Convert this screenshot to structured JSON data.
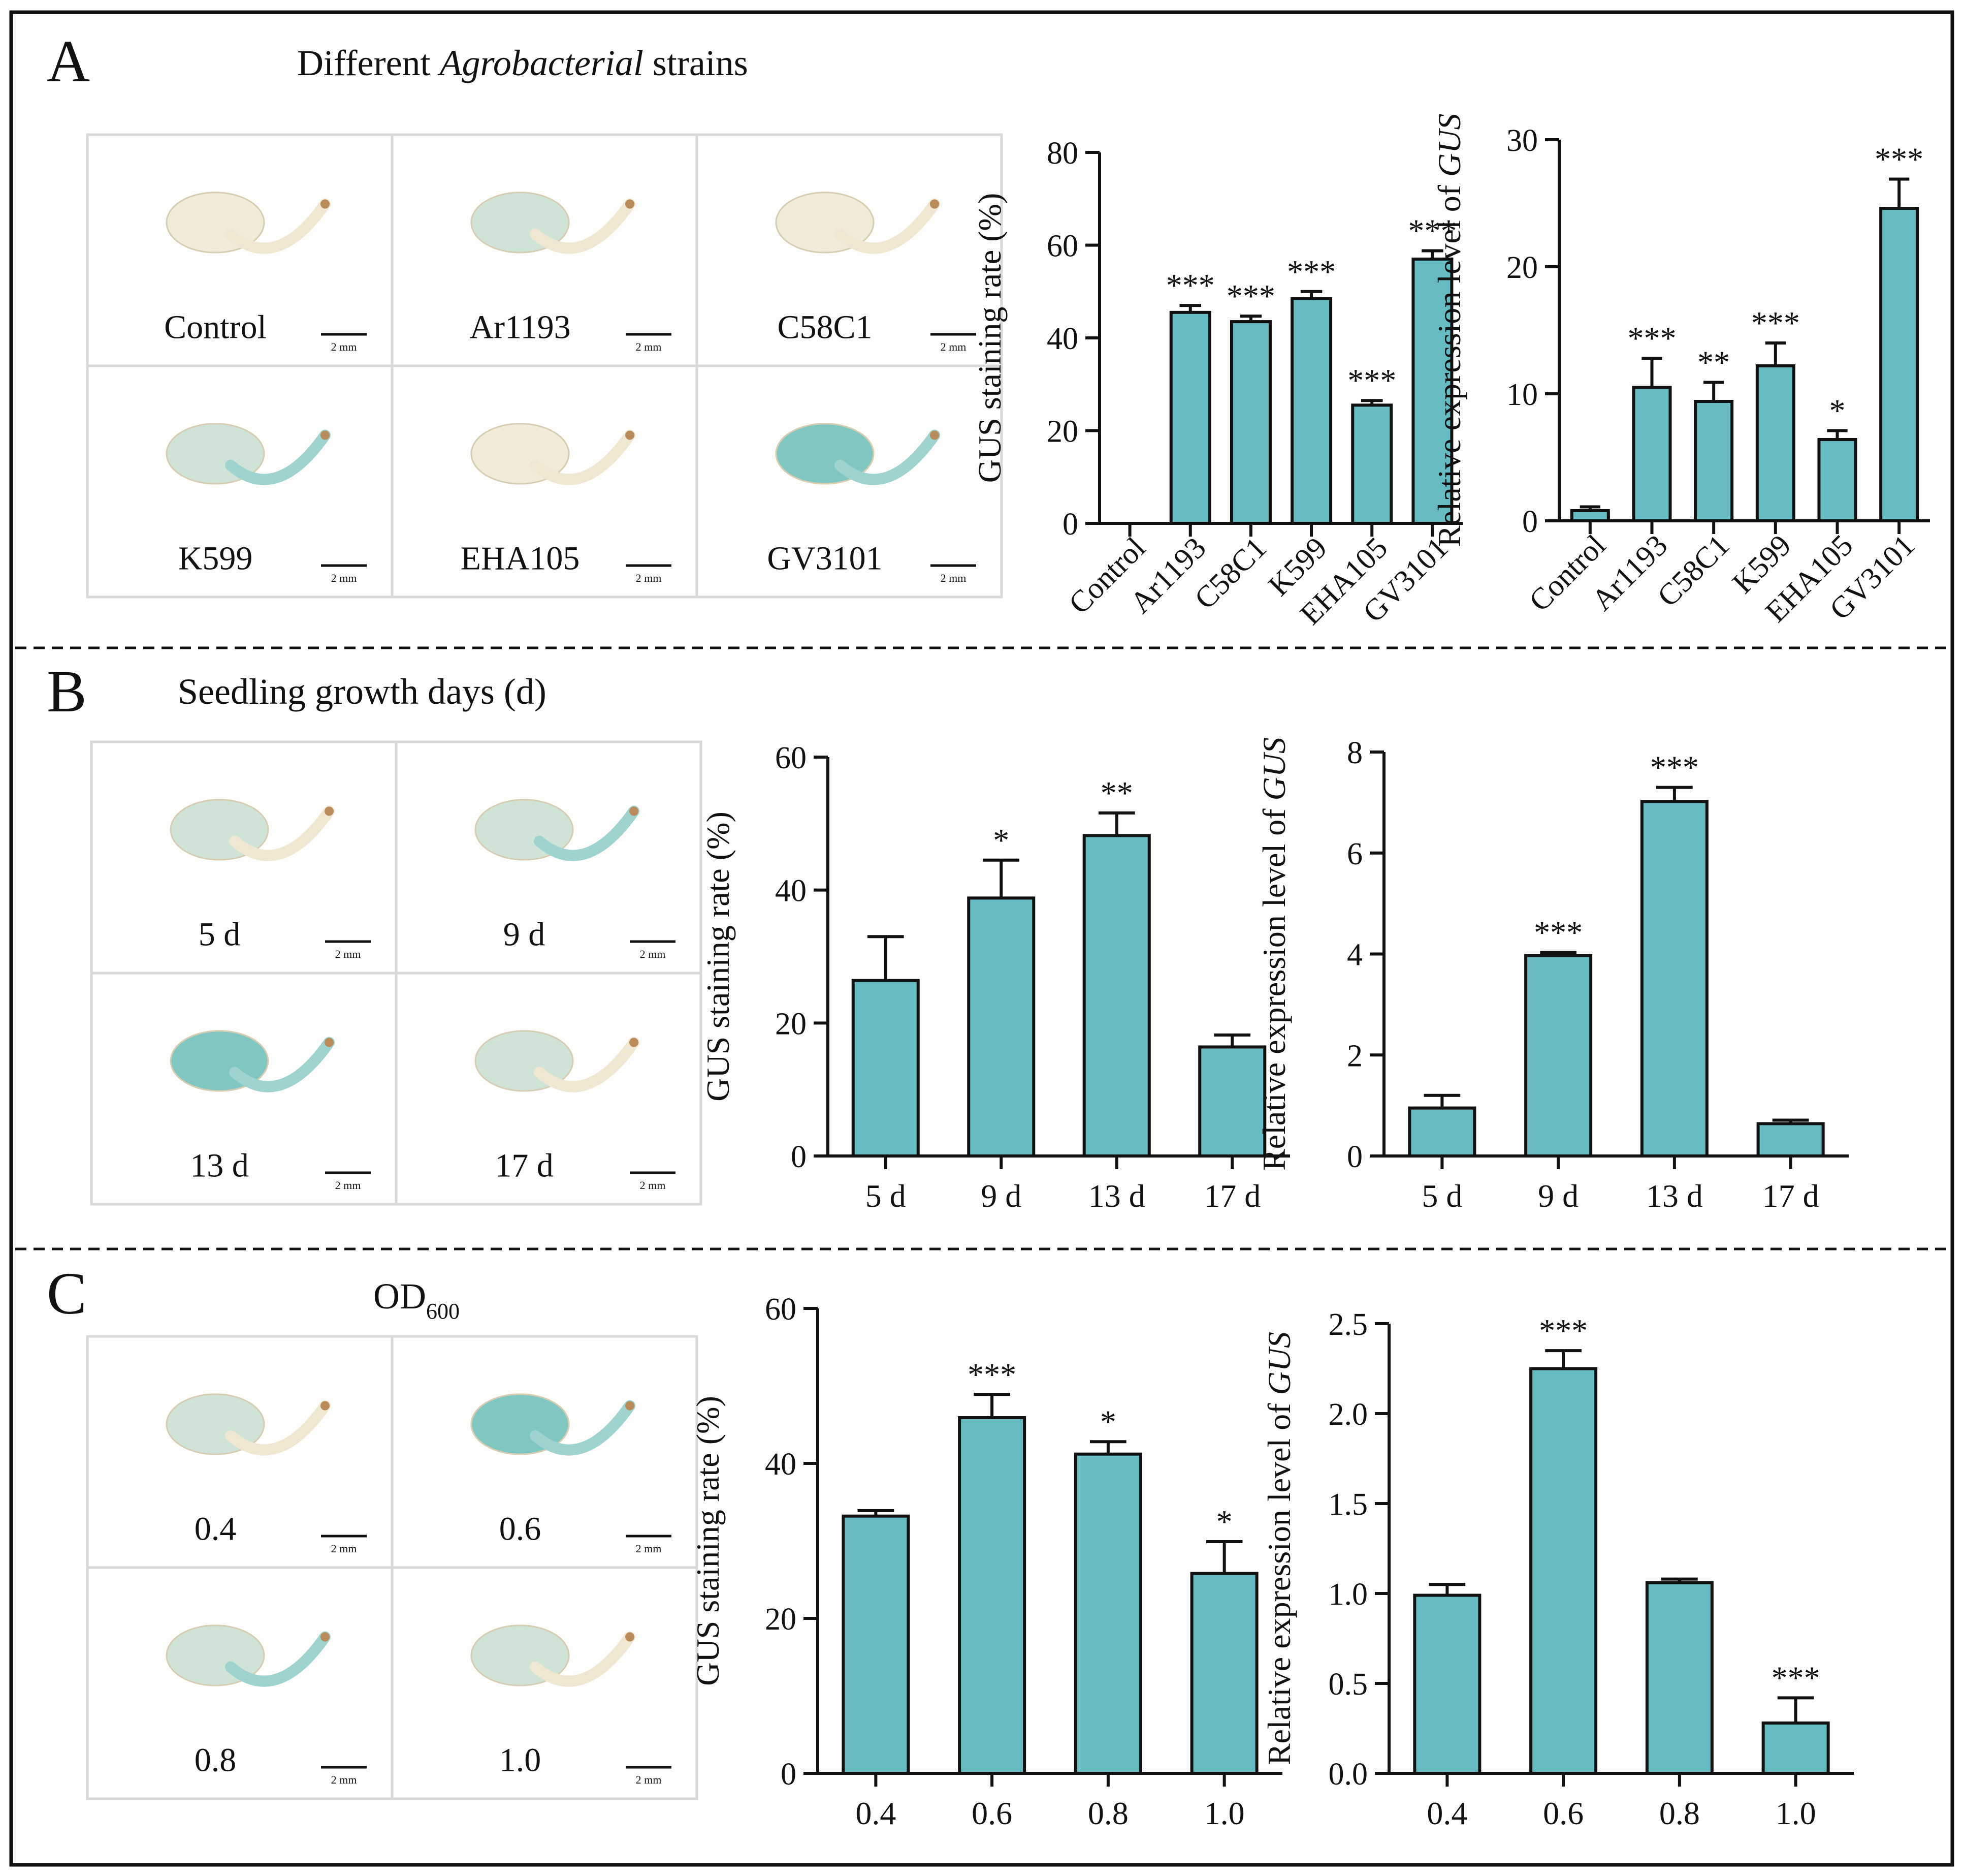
{
  "panels": {
    "A": {
      "letter": "A",
      "title_prefix": "Different ",
      "title_italic": "Agrobacterial",
      "title_suffix": " strains"
    },
    "B": {
      "letter": "B",
      "title": "Seedling growth days (d)"
    },
    "C": {
      "letter": "C",
      "title_main": "OD",
      "title_sub": "600"
    }
  },
  "photos": {
    "A": [
      {
        "label": "Control",
        "scale": "2 mm",
        "blue": 0.0
      },
      {
        "label": "Ar1193",
        "scale": "2 mm",
        "blue": 0.3
      },
      {
        "label": "C58C1",
        "scale": "2 mm",
        "blue": 0.1
      },
      {
        "label": "K599",
        "scale": "2 mm",
        "blue": 0.5
      },
      {
        "label": "EHA105",
        "scale": "2 mm",
        "blue": 0.05
      },
      {
        "label": "GV3101",
        "scale": "2 mm",
        "blue": 0.9
      }
    ],
    "B": [
      {
        "label": "5 d",
        "scale": "2 mm",
        "blue": 0.3
      },
      {
        "label": "9 d",
        "scale": "2 mm",
        "blue": 0.6
      },
      {
        "label": "13 d",
        "scale": "2 mm",
        "blue": 0.7
      },
      {
        "label": "17 d",
        "scale": "2 mm",
        "blue": 0.3
      }
    ],
    "C": [
      {
        "label": "0.4",
        "scale": "2 mm",
        "blue": 0.3
      },
      {
        "label": "0.6",
        "scale": "2 mm",
        "blue": 0.8
      },
      {
        "label": "0.8",
        "scale": "2 mm",
        "blue": 0.5
      },
      {
        "label": "1.0",
        "scale": "2 mm",
        "blue": 0.3
      }
    ]
  },
  "colors": {
    "bar": "#67BCC3",
    "ink": "#111111"
  },
  "chart_data": [
    {
      "id": "A1",
      "type": "bar",
      "ylabel": "GUS staining rate (%)",
      "ylabel_italic": "",
      "categories": [
        "Control",
        "Ar1193",
        "C58C1",
        "K599",
        "EHA105",
        "GV3101"
      ],
      "values": [
        0,
        45.5,
        43.5,
        48.5,
        25.5,
        57.0
      ],
      "errors": [
        0,
        1.5,
        1.2,
        1.5,
        1.0,
        1.8
      ],
      "significance": [
        "",
        "***",
        "***",
        "***",
        "***",
        "***"
      ],
      "ylim": [
        0,
        80
      ],
      "yticks": [
        "0",
        "20",
        "40",
        "60",
        "80"
      ],
      "rotate_x": true
    },
    {
      "id": "A2",
      "type": "bar",
      "ylabel": "Relative expression level of ",
      "ylabel_italic": "GUS",
      "categories": [
        "Control",
        "Ar1193",
        "C58C1",
        "K599",
        "EHA105",
        "GV3101"
      ],
      "values": [
        0.8,
        10.5,
        9.4,
        12.2,
        6.4,
        24.6
      ],
      "errors": [
        0.3,
        2.3,
        1.5,
        1.8,
        0.7,
        2.3
      ],
      "significance": [
        "",
        "***",
        "**",
        "***",
        "*",
        "***"
      ],
      "ylim": [
        0,
        30
      ],
      "yticks": [
        "0",
        "10",
        "20",
        "30"
      ],
      "rotate_x": true
    },
    {
      "id": "B1",
      "type": "bar",
      "ylabel": "GUS staining rate (%)",
      "ylabel_italic": "",
      "categories": [
        "5 d",
        "9 d",
        "13 d",
        "17 d"
      ],
      "values": [
        26.4,
        38.8,
        48.2,
        16.4
      ],
      "errors": [
        6.6,
        5.7,
        3.4,
        1.8
      ],
      "significance": [
        "",
        "*",
        "**",
        ""
      ],
      "ylim": [
        0,
        60
      ],
      "yticks": [
        "0",
        "20",
        "40",
        "60"
      ],
      "rotate_x": false
    },
    {
      "id": "B2",
      "type": "bar",
      "ylabel": "Relative expression level of ",
      "ylabel_italic": "GUS",
      "categories": [
        "5 d",
        "9 d",
        "13 d",
        "17 d"
      ],
      "values": [
        0.95,
        3.97,
        7.02,
        0.64
      ],
      "errors": [
        0.25,
        0.06,
        0.28,
        0.07
      ],
      "significance": [
        "",
        "***",
        "***",
        ""
      ],
      "ylim": [
        0,
        8
      ],
      "yticks": [
        "0",
        "2",
        "4",
        "6",
        "8"
      ],
      "rotate_x": false
    },
    {
      "id": "C1",
      "type": "bar",
      "ylabel": "GUS staining rate (%)",
      "ylabel_italic": "",
      "categories": [
        "0.4",
        "0.6",
        "0.8",
        "1.0"
      ],
      "values": [
        33.2,
        45.9,
        41.2,
        25.8
      ],
      "errors": [
        0.7,
        3.0,
        1.6,
        4.1
      ],
      "significance": [
        "",
        "***",
        "*",
        "*"
      ],
      "ylim": [
        0,
        60
      ],
      "yticks": [
        "0",
        "20",
        "40",
        "60"
      ],
      "rotate_x": false
    },
    {
      "id": "C2",
      "type": "bar",
      "ylabel": "Relative expression level of ",
      "ylabel_italic": "GUS",
      "categories": [
        "0.4",
        "0.6",
        "0.8",
        "1.0"
      ],
      "values": [
        0.99,
        2.25,
        1.06,
        0.28
      ],
      "errors": [
        0.06,
        0.1,
        0.02,
        0.14
      ],
      "significance": [
        "",
        "***",
        "",
        "***"
      ],
      "ylim": [
        0,
        2.5
      ],
      "yticks": [
        "0.0",
        "0.5",
        "1.0",
        "1.5",
        "2.0",
        "2.5"
      ],
      "rotate_x": false
    }
  ]
}
